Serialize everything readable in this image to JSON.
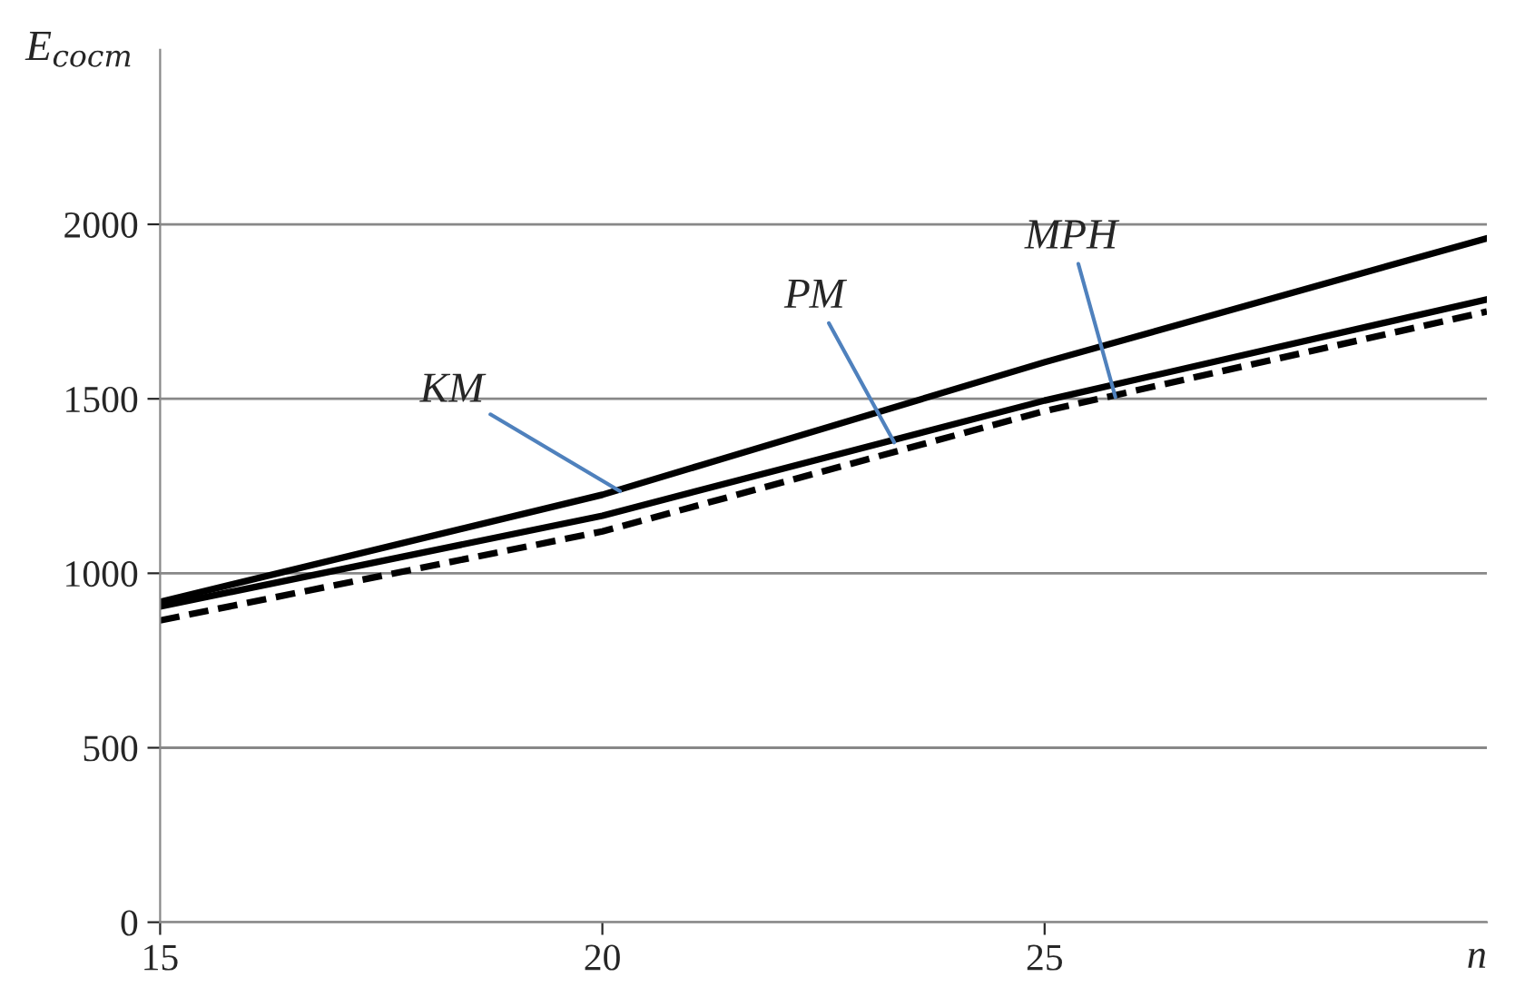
{
  "chart_data": {
    "type": "line",
    "xlabel": "n",
    "ylabel": "E$_{сост}$",
    "x": [
      15,
      20,
      25,
      30
    ],
    "series": [
      {
        "color": "#000000",
        "values": [
          918,
          1225,
          1605,
          1960
        ],
        "line_style": "solid"
      },
      {
        "color": "#000000",
        "values": [
          905,
          1165,
          1495,
          1785
        ],
        "line_style": "solid"
      },
      {
        "color": "#000000",
        "values": [
          865,
          1120,
          1465,
          1750
        ],
        "line_style": "dashed"
      }
    ],
    "xlim": [
      15,
      30
    ],
    "xticks": [
      15,
      20,
      25
    ],
    "ylim": [
      0,
      2500
    ],
    "yticks": [
      0,
      500,
      1000,
      1500,
      2000
    ],
    "grid": "y",
    "legend": false,
    "marker": "none",
    "annotations": [
      {
        "text": "КМ",
        "x": 20.2,
        "y": 1235
      },
      {
        "text": "РМ",
        "x": 23.3,
        "y": 1375
      },
      {
        "text": "МРН",
        "x": 25.8,
        "y": 1505
      }
    ]
  }
}
